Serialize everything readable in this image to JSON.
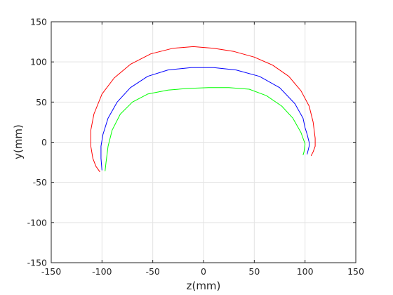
{
  "chart_data": {
    "type": "line",
    "title": "",
    "xlabel": "z(mm)",
    "ylabel": "y(mm)",
    "xlim": [
      -150,
      150
    ],
    "ylim": [
      -150,
      150
    ],
    "xticks": [
      -150,
      -100,
      -50,
      0,
      50,
      100,
      150
    ],
    "yticks": [
      -150,
      -100,
      -50,
      0,
      50,
      100,
      150
    ],
    "grid": true,
    "box": true,
    "series": [
      {
        "color": "#ff0000",
        "x": [
          -102,
          -106,
          -109,
          -111,
          -111,
          -108,
          -100,
          -88,
          -72,
          -52,
          -30,
          -10,
          10,
          30,
          50,
          68,
          84,
          96,
          104,
          108,
          110,
          110,
          108,
          106
        ],
        "y": [
          -37,
          -30,
          -20,
          -5,
          15,
          35,
          60,
          80,
          97,
          110,
          117,
          119,
          117,
          113,
          106,
          96,
          82,
          64,
          45,
          25,
          5,
          -5,
          -12,
          -17
        ]
      },
      {
        "color": "#0000ff",
        "x": [
          -100,
          -101,
          -101,
          -99,
          -94,
          -85,
          -72,
          -55,
          -35,
          -12,
          10,
          32,
          55,
          75,
          90,
          98,
          100,
          102,
          104,
          104,
          102
        ],
        "y": [
          -35,
          -20,
          -5,
          10,
          30,
          50,
          68,
          82,
          90,
          93,
          93,
          90,
          82,
          68,
          48,
          30,
          18,
          10,
          0,
          -5,
          -15
        ]
      },
      {
        "color": "#00ff00",
        "x": [
          -97,
          -96,
          -94,
          -90,
          -82,
          -70,
          -55,
          -35,
          -15,
          5,
          25,
          45,
          62,
          77,
          88,
          96,
          100,
          99,
          98
        ],
        "y": [
          -36,
          -25,
          -5,
          15,
          35,
          50,
          60,
          65,
          67,
          68,
          68,
          66,
          58,
          45,
          30,
          12,
          -2,
          -12,
          -16
        ]
      }
    ]
  }
}
